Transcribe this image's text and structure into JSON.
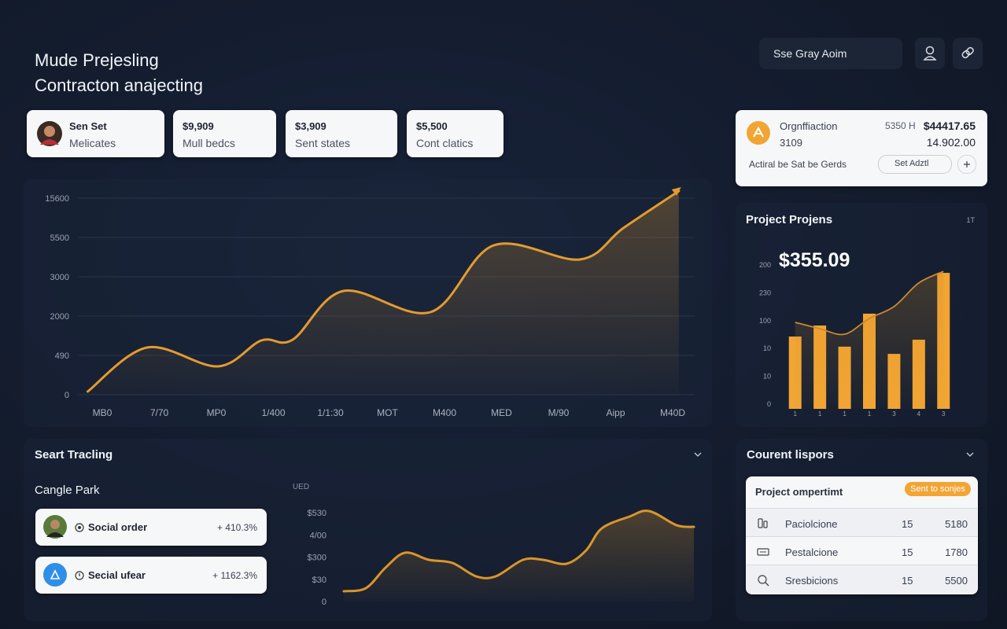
{
  "header": {
    "title_line1": "Mude Prejesling",
    "title_line2": "Contracton anajecting",
    "search_text": "Sse Gray Aoim"
  },
  "stat_cards": [
    {
      "title": "Sen Set",
      "subtitle": "Melicates"
    },
    {
      "title": "$9,909",
      "subtitle": "Mull bedcs"
    },
    {
      "title": "$3,909",
      "subtitle": "Sent states"
    },
    {
      "title": "$5,500",
      "subtitle": "Cont clatics"
    }
  ],
  "summary_card": {
    "title": "Orgnffiaction",
    "code": "3109",
    "meta": "5350 H",
    "amount": "$44417.65",
    "amount2": "14.902.00",
    "note": "Actiral be Sat be Gerds",
    "button": "Set Adztl"
  },
  "chart_data": [
    {
      "type": "area",
      "x": [
        -0.28,
        0.76,
        2.0,
        2.76,
        3.31,
        4.2,
        5.72,
        6.83,
        8.34,
        9.1,
        10.07
      ],
      "values": [
        1.6,
        24,
        14.4,
        27.6,
        28,
        52.8,
        42,
        76,
        68.8,
        84.8,
        103.6
      ],
      "xlim": [
        -0.3,
        10.1
      ],
      "ylim": [
        0,
        100
      ],
      "y_labels": [
        "15600",
        "5500",
        "3000",
        "2000",
        "490",
        "0"
      ],
      "x_labels": [
        "MB0",
        "7/70",
        "MP0",
        "1/400",
        "1/1:30",
        "MOT",
        "M400",
        "MED",
        "M/90",
        "Aipp",
        "M40D"
      ],
      "color": "#e39b2f",
      "grid": true
    },
    {
      "type": "bar",
      "title": "Project Projens",
      "annotation": "$355.09",
      "corner_label": "1T",
      "categories": [
        "1",
        "1",
        "1",
        "1",
        "3",
        "4",
        "3"
      ],
      "ylim": [
        0,
        100
      ],
      "y_labels": [
        "200",
        "230",
        "100",
        "10",
        "10",
        "0"
      ],
      "series": [
        {
          "kind": "bar",
          "color": "#f2a533",
          "values": [
            50,
            57.6,
            43,
            65.8,
            38,
            47.8,
            94
          ]
        },
        {
          "kind": "line",
          "color": "#c98a2c",
          "values": [
            59.8,
            55.4,
            51.6,
            62.5,
            70.7,
            87,
            95
          ]
        }
      ]
    },
    {
      "type": "area",
      "x": [
        0,
        6.3,
        11.9,
        17.5,
        24.3,
        31,
        37.8,
        43.4,
        51.2,
        56.9,
        63.6,
        69.2,
        73.7,
        81.6,
        87.2,
        95.1,
        100
      ],
      "values": [
        11.5,
        15,
        38,
        54.9,
        46.9,
        43.4,
        28.3,
        28.3,
        46.9,
        46.9,
        42.5,
        57.5,
        82.3,
        95.6,
        101.8,
        85.8,
        84
      ],
      "xlim": [
        0,
        100
      ],
      "ylim": [
        0,
        100
      ],
      "y_labels": [
        "$530",
        "4/00",
        "$300",
        "$30",
        "0"
      ],
      "unit_label": "UED",
      "color": "#d9952c"
    }
  ],
  "tracking": {
    "title": "Seart Tracling",
    "subtitle": "Cangle Park",
    "items": [
      {
        "label": "Social order",
        "change": "+ 410.3%"
      },
      {
        "label": "Secial ufear",
        "change": "+ 1162.3%"
      }
    ]
  },
  "reports": {
    "title": "Courent lispors",
    "table_title": "Project ompertimt",
    "badge": "Sent to sonjes",
    "rows": [
      [
        "Paciolcione",
        "15",
        "5180"
      ],
      [
        "Pestalcione",
        "15",
        "1780"
      ],
      [
        "Sresbicions",
        "15",
        "5500"
      ]
    ]
  }
}
